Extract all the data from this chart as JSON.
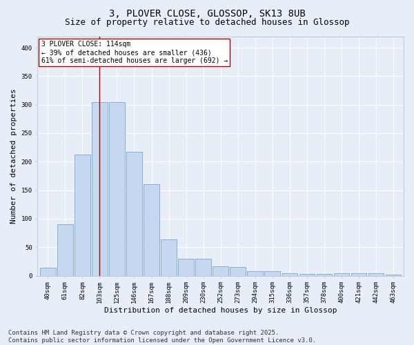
{
  "title1": "3, PLOVER CLOSE, GLOSSOP, SK13 8UB",
  "title2": "Size of property relative to detached houses in Glossop",
  "xlabel": "Distribution of detached houses by size in Glossop",
  "ylabel": "Number of detached properties",
  "bar_labels": [
    "40sqm",
    "61sqm",
    "82sqm",
    "103sqm",
    "125sqm",
    "146sqm",
    "167sqm",
    "188sqm",
    "209sqm",
    "230sqm",
    "252sqm",
    "273sqm",
    "294sqm",
    "315sqm",
    "336sqm",
    "357sqm",
    "378sqm",
    "400sqm",
    "421sqm",
    "442sqm",
    "463sqm"
  ],
  "bar_heights": [
    14,
    90,
    212,
    305,
    305,
    217,
    160,
    64,
    30,
    30,
    16,
    15,
    8,
    8,
    4,
    3,
    3,
    4,
    4,
    4,
    2
  ],
  "bar_color": "#c5d8f0",
  "bar_edgecolor": "#6699cc",
  "vline_x": 3,
  "vline_color": "#aa0000",
  "annotation_text": "3 PLOVER CLOSE: 114sqm\n← 39% of detached houses are smaller (436)\n61% of semi-detached houses are larger (692) →",
  "annotation_box_color": "#ffffff",
  "annotation_box_edgecolor": "#aa0000",
  "ylim": [
    0,
    420
  ],
  "yticks": [
    0,
    50,
    100,
    150,
    200,
    250,
    300,
    350,
    400
  ],
  "background_color": "#e8eef8",
  "grid_color": "#ffffff",
  "footer": "Contains HM Land Registry data © Crown copyright and database right 2025.\nContains public sector information licensed under the Open Government Licence v3.0.",
  "title_fontsize": 10,
  "subtitle_fontsize": 9,
  "axis_label_fontsize": 8,
  "tick_fontsize": 6.5,
  "annotation_fontsize": 7,
  "footer_fontsize": 6.5
}
